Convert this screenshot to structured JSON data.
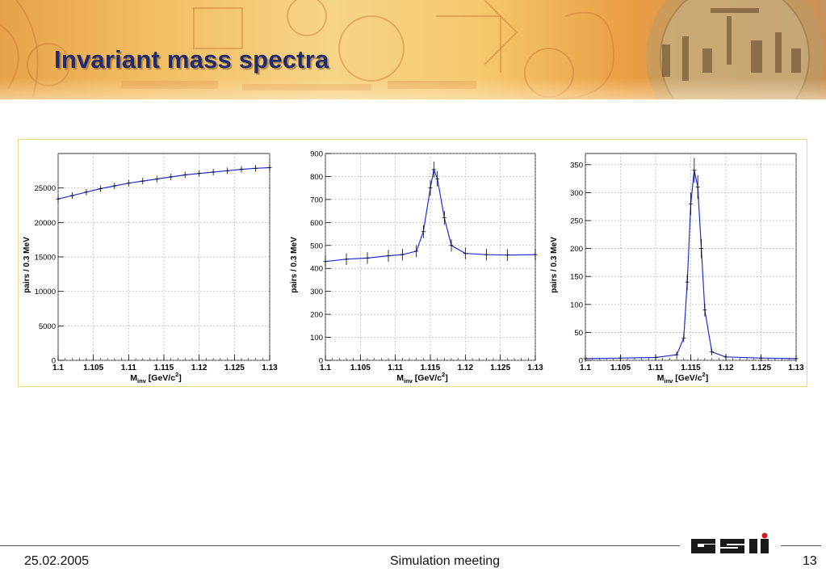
{
  "slide": {
    "title": "Invariant mass spectra",
    "footer": {
      "date": "25.02.2005",
      "meeting": "Simulation meeting",
      "page": "13"
    },
    "logo_icon": "gsi-logo"
  },
  "colors": {
    "title": "#222a6e",
    "fit_line": "#1c2fd6",
    "data_marks": "#000000",
    "frame": "#ebd87a"
  },
  "chart_data": [
    {
      "type": "scatter",
      "title": "",
      "xlabel_main": "M",
      "xlabel_sub": "inv",
      "xlabel_unit": " [GeV/c",
      "xlabel_sup": "2",
      "xlabel_end": "]",
      "ylabel": "pairs / 0.3 MeV",
      "xlim": [
        1.1,
        1.13
      ],
      "ylim": [
        0,
        30000
      ],
      "xticks": [
        "1.1",
        "1.105",
        "1.11",
        "1.115",
        "1.12",
        "1.125",
        "1.13"
      ],
      "yticks": [
        "0",
        "5000",
        "10000",
        "15000",
        "20000",
        "25000"
      ],
      "grid": true,
      "fit_line": true,
      "x": [
        1.1,
        1.102,
        1.104,
        1.106,
        1.108,
        1.11,
        1.112,
        1.114,
        1.116,
        1.118,
        1.12,
        1.122,
        1.124,
        1.126,
        1.128,
        1.13
      ],
      "y": [
        23400,
        23900,
        24400,
        24900,
        25300,
        25700,
        26000,
        26300,
        26600,
        26900,
        27100,
        27300,
        27500,
        27700,
        27850,
        27950
      ]
    },
    {
      "type": "scatter",
      "title": "",
      "xlabel_main": "M",
      "xlabel_sub": "inv",
      "xlabel_unit": " [GeV/c",
      "xlabel_sup": "2",
      "xlabel_end": "]",
      "ylabel": "pairs / 0.3 MeV",
      "xlim": [
        1.1,
        1.13
      ],
      "ylim": [
        0,
        900
      ],
      "xticks": [
        "1.1",
        "1.105",
        "1.11",
        "1.115",
        "1.12",
        "1.125",
        "1.13"
      ],
      "yticks": [
        "0",
        "100",
        "200",
        "300",
        "400",
        "500",
        "600",
        "700",
        "800",
        "900"
      ],
      "grid": true,
      "fit_line": true,
      "x": [
        1.1,
        1.103,
        1.106,
        1.109,
        1.111,
        1.113,
        1.114,
        1.115,
        1.1155,
        1.116,
        1.117,
        1.118,
        1.12,
        1.123,
        1.126,
        1.13
      ],
      "y": [
        430,
        440,
        445,
        455,
        460,
        475,
        560,
        750,
        830,
        790,
        620,
        500,
        465,
        460,
        458,
        460
      ]
    },
    {
      "type": "scatter",
      "title": "",
      "xlabel_main": "M",
      "xlabel_sub": "inv",
      "xlabel_unit": " [GeV/c",
      "xlabel_sup": "2",
      "xlabel_end": "]",
      "ylabel": "pairs / 0.3 MeV",
      "xlim": [
        1.1,
        1.13
      ],
      "ylim": [
        0,
        370
      ],
      "xticks": [
        "1.1",
        "1.105",
        "1.11",
        "1.115",
        "1.12",
        "1.125",
        "1.13"
      ],
      "yticks": [
        "0",
        "50",
        "100",
        "150",
        "200",
        "250",
        "300",
        "350"
      ],
      "grid": true,
      "fit_line": true,
      "x": [
        1.1,
        1.105,
        1.11,
        1.113,
        1.114,
        1.1145,
        1.115,
        1.1155,
        1.116,
        1.1165,
        1.117,
        1.118,
        1.12,
        1.125,
        1.13
      ],
      "y": [
        3,
        4,
        5,
        10,
        40,
        140,
        280,
        340,
        310,
        200,
        90,
        15,
        6,
        4,
        3
      ]
    }
  ]
}
